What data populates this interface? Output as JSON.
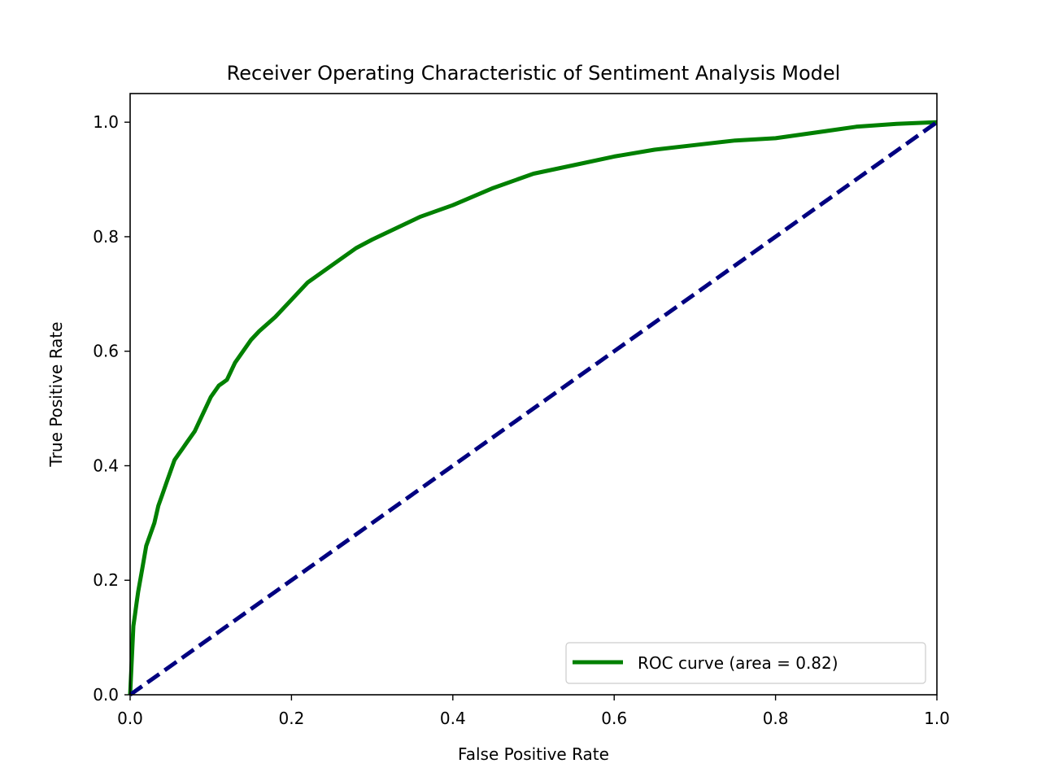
{
  "chart_data": {
    "type": "line",
    "title": "Receiver Operating Characteristic of Sentiment Analysis Model",
    "xlabel": "False Positive Rate",
    "ylabel": "True Positive Rate",
    "xlim": [
      0.0,
      1.0
    ],
    "ylim": [
      0.0,
      1.05
    ],
    "xticks": [
      "0.0",
      "0.2",
      "0.4",
      "0.6",
      "0.8",
      "1.0"
    ],
    "yticks": [
      "0.0",
      "0.2",
      "0.4",
      "0.6",
      "0.8",
      "1.0"
    ],
    "grid": false,
    "legend_position": "lower-right",
    "series": [
      {
        "name": "ROC curve (area = 0.82)",
        "color": "#008000",
        "style": "solid",
        "x": [
          0.0,
          0.002,
          0.004,
          0.006,
          0.008,
          0.01,
          0.015,
          0.02,
          0.025,
          0.03,
          0.035,
          0.04,
          0.045,
          0.05,
          0.055,
          0.06,
          0.065,
          0.07,
          0.08,
          0.09,
          0.1,
          0.11,
          0.115,
          0.12,
          0.13,
          0.14,
          0.15,
          0.16,
          0.18,
          0.2,
          0.22,
          0.25,
          0.28,
          0.3,
          0.33,
          0.36,
          0.4,
          0.45,
          0.5,
          0.55,
          0.6,
          0.65,
          0.7,
          0.75,
          0.8,
          0.85,
          0.9,
          0.95,
          1.0
        ],
        "y": [
          0.0,
          0.06,
          0.12,
          0.14,
          0.16,
          0.18,
          0.22,
          0.26,
          0.28,
          0.3,
          0.33,
          0.35,
          0.37,
          0.39,
          0.41,
          0.42,
          0.43,
          0.44,
          0.46,
          0.49,
          0.52,
          0.54,
          0.545,
          0.55,
          0.58,
          0.6,
          0.62,
          0.635,
          0.66,
          0.69,
          0.72,
          0.75,
          0.78,
          0.795,
          0.815,
          0.835,
          0.855,
          0.885,
          0.91,
          0.925,
          0.94,
          0.952,
          0.96,
          0.968,
          0.972,
          0.982,
          0.992,
          0.997,
          1.0
        ]
      },
      {
        "name": "",
        "color": "#000080",
        "style": "dashed",
        "x": [
          0.0,
          1.0
        ],
        "y": [
          0.0,
          1.0
        ]
      }
    ]
  }
}
